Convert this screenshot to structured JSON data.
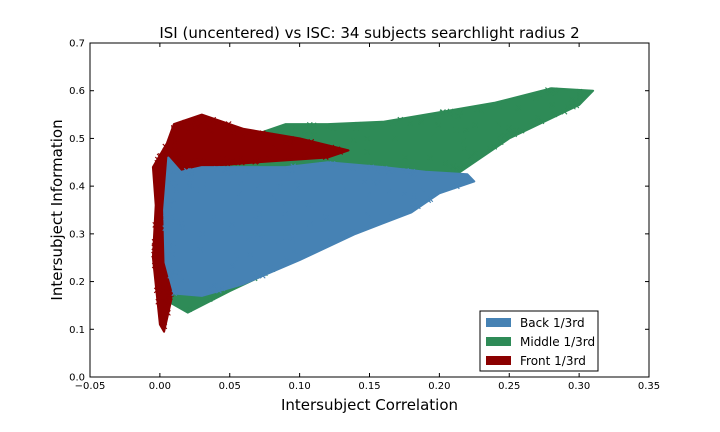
{
  "chart_data": {
    "type": "scatter",
    "title": "ISI (uncentered) vs ISC: 34 subjects searchlight radius 2",
    "xlabel": "Intersubject Correlation",
    "ylabel": "Intersubject Information",
    "xlim": [
      -0.05,
      0.35
    ],
    "ylim": [
      0.0,
      0.7
    ],
    "x_ticks": [
      "−0.05",
      "0.00",
      "0.05",
      "0.10",
      "0.15",
      "0.20",
      "0.25",
      "0.30",
      "0.35"
    ],
    "y_ticks": [
      "0.0",
      "0.1",
      "0.2",
      "0.3",
      "0.4",
      "0.5",
      "0.6",
      "0.7"
    ],
    "marker": "x",
    "grid": false,
    "legend_position": "lower right",
    "series": [
      {
        "name": "Middle 1/3rd",
        "color": "#2e8b57",
        "shape": [
          [
            0.005,
            0.16
          ],
          [
            0.02,
            0.135
          ],
          [
            0.05,
            0.18
          ],
          [
            0.09,
            0.235
          ],
          [
            0.13,
            0.3
          ],
          [
            0.17,
            0.36
          ],
          [
            0.21,
            0.42
          ],
          [
            0.25,
            0.5
          ],
          [
            0.3,
            0.57
          ],
          [
            0.31,
            0.6
          ],
          [
            0.28,
            0.605
          ],
          [
            0.24,
            0.575
          ],
          [
            0.2,
            0.555
          ],
          [
            0.16,
            0.535
          ],
          [
            0.12,
            0.53
          ],
          [
            0.09,
            0.53
          ],
          [
            0.07,
            0.51
          ],
          [
            0.04,
            0.47
          ],
          [
            0.015,
            0.44
          ],
          [
            0.005,
            0.35
          ]
        ]
      },
      {
        "name": "Front 1/3rd",
        "color": "#8b0000",
        "shape": [
          [
            -0.003,
            0.36
          ],
          [
            -0.005,
            0.25
          ],
          [
            0.0,
            0.11
          ],
          [
            0.003,
            0.095
          ],
          [
            0.008,
            0.16
          ],
          [
            0.012,
            0.34
          ],
          [
            0.025,
            0.44
          ],
          [
            0.07,
            0.45
          ],
          [
            0.12,
            0.46
          ],
          [
            0.135,
            0.475
          ],
          [
            0.1,
            0.5
          ],
          [
            0.06,
            0.52
          ],
          [
            0.03,
            0.55
          ],
          [
            0.01,
            0.53
          ],
          [
            0.005,
            0.49
          ],
          [
            -0.005,
            0.44
          ]
        ]
      },
      {
        "name": "Back 1/3rd",
        "color": "#4682b4",
        "shape": [
          [
            0.006,
            0.46
          ],
          [
            0.003,
            0.35
          ],
          [
            0.004,
            0.24
          ],
          [
            0.01,
            0.175
          ],
          [
            0.03,
            0.17
          ],
          [
            0.06,
            0.195
          ],
          [
            0.1,
            0.245
          ],
          [
            0.14,
            0.3
          ],
          [
            0.18,
            0.345
          ],
          [
            0.2,
            0.385
          ],
          [
            0.225,
            0.41
          ],
          [
            0.22,
            0.425
          ],
          [
            0.19,
            0.43
          ],
          [
            0.16,
            0.44
          ],
          [
            0.12,
            0.45
          ],
          [
            0.09,
            0.44
          ],
          [
            0.06,
            0.44
          ],
          [
            0.03,
            0.44
          ],
          [
            0.015,
            0.43
          ]
        ]
      }
    ],
    "legend_entries": [
      "Back 1/3rd",
      "Middle 1/3rd",
      "Front 1/3rd"
    ],
    "legend_colors": [
      "#4682b4",
      "#2e8b57",
      "#8b0000"
    ]
  }
}
